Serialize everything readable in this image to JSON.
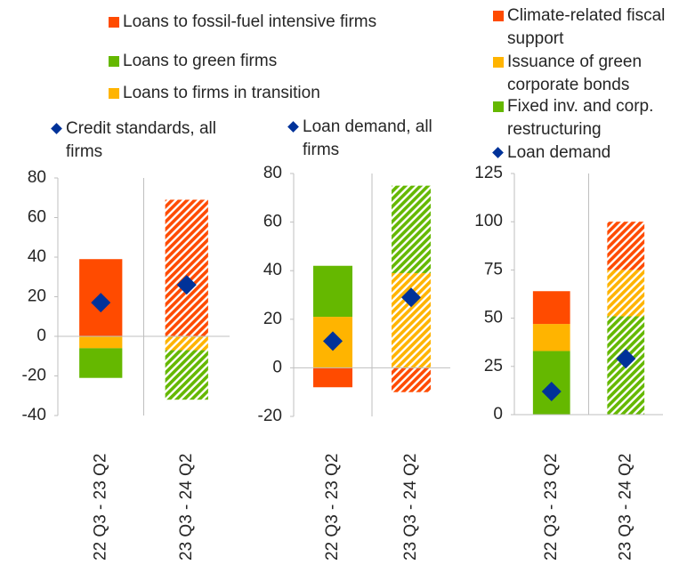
{
  "chart_data": [
    {
      "type": "bar",
      "stacked": true,
      "categories": [
        "22 Q3 - 23 Q2",
        "23 Q3 - 24 Q2"
      ],
      "hatched": [
        false,
        true
      ],
      "ylim": [
        -40,
        80
      ],
      "yticks": [
        -40,
        -20,
        0,
        20,
        40,
        60,
        80
      ],
      "series": [
        {
          "name": "Loans to fossil-fuel intensive firms",
          "color": "#ff4b00",
          "values": [
            39,
            69
          ]
        },
        {
          "name": "Loans to firms in transition",
          "color": "#ffb400",
          "values": [
            -6,
            -7
          ]
        },
        {
          "name": "Loans to green firms",
          "color": "#65b800",
          "values": [
            -15,
            -25
          ]
        },
        {
          "name": "Credit standards, all firms",
          "type": "scatter",
          "marker": "diamond",
          "color": "#003299",
          "values": [
            17,
            26
          ]
        }
      ]
    },
    {
      "type": "bar",
      "stacked": true,
      "categories": [
        "22 Q3 - 23 Q2",
        "23 Q3 - 24 Q2"
      ],
      "hatched": [
        false,
        true
      ],
      "ylim": [
        -20,
        80
      ],
      "yticks": [
        -20,
        0,
        20,
        40,
        60,
        80
      ],
      "series": [
        {
          "color": "#ffb400",
          "values": [
            21,
            39
          ]
        },
        {
          "color": "#65b800",
          "values": [
            21,
            36
          ]
        },
        {
          "color": "#ff4b00",
          "values": [
            -8,
            -10
          ]
        },
        {
          "name": "Loan demand, all firms",
          "type": "scatter",
          "marker": "diamond",
          "color": "#003299",
          "values": [
            11,
            29
          ]
        }
      ]
    },
    {
      "type": "bar",
      "stacked": true,
      "categories": [
        "22 Q3 - 23 Q2",
        "23 Q3 - 24 Q2"
      ],
      "hatched": [
        false,
        true
      ],
      "ylim": [
        0,
        125
      ],
      "yticks": [
        0,
        25,
        50,
        75,
        100,
        125
      ],
      "series": [
        {
          "name": "Fixed inv. and corp. restructuring",
          "color": "#65b800",
          "values": [
            33,
            51
          ]
        },
        {
          "name": "Issuance of green corporate bonds",
          "color": "#ffb400",
          "values": [
            14,
            24
          ]
        },
        {
          "name": "Climate-related fiscal support",
          "color": "#ff4b00",
          "values": [
            17,
            25
          ]
        },
        {
          "name": "Loan demand",
          "type": "scatter",
          "marker": "diamond",
          "color": "#003299",
          "values": [
            12,
            29
          ]
        }
      ]
    }
  ]
}
